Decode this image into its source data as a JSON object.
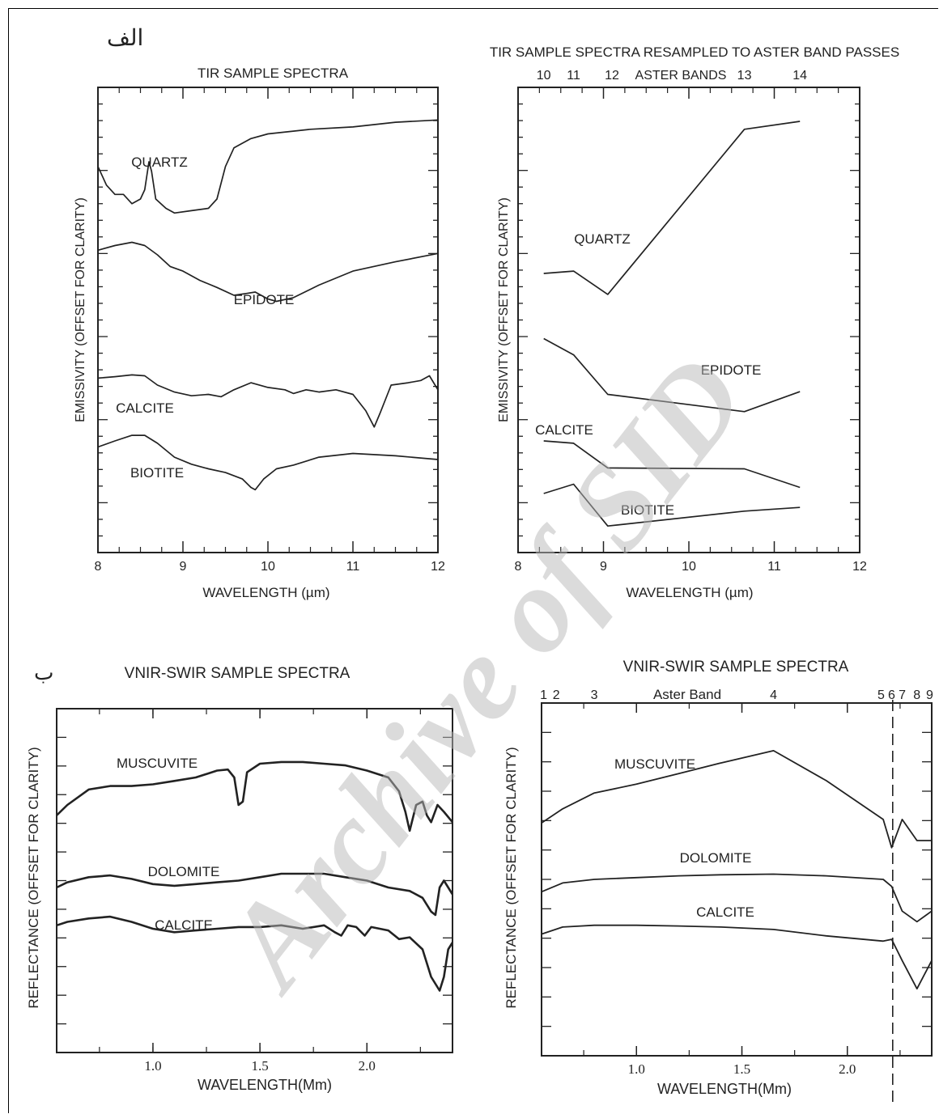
{
  "panel_labels": {
    "a": "الف",
    "b": "ب"
  },
  "watermark": "Archive of SID",
  "chart_data": [
    {
      "type": "line",
      "title": "TIR SAMPLE SPECTRA",
      "xlabel": "WAVELENGTH (µm)",
      "ylabel": "EMISSIVITY (OFFSET FOR CLARITY)",
      "xlim": [
        8,
        12
      ],
      "ylim": [
        0,
        1
      ],
      "x_ticks": [
        "8",
        "9",
        "10",
        "11",
        "12"
      ],
      "grid": false,
      "series": [
        {
          "name": "QUARTZ",
          "points": [
            [
              8.0,
              0.83
            ],
            [
              8.1,
              0.79
            ],
            [
              8.2,
              0.77
            ],
            [
              8.3,
              0.77
            ],
            [
              8.4,
              0.75
            ],
            [
              8.5,
              0.76
            ],
            [
              8.55,
              0.78
            ],
            [
              8.6,
              0.84
            ],
            [
              8.63,
              0.82
            ],
            [
              8.68,
              0.76
            ],
            [
              8.8,
              0.74
            ],
            [
              8.9,
              0.73
            ],
            [
              9.1,
              0.735
            ],
            [
              9.3,
              0.74
            ],
            [
              9.4,
              0.76
            ],
            [
              9.5,
              0.83
            ],
            [
              9.6,
              0.87
            ],
            [
              9.8,
              0.89
            ],
            [
              10.0,
              0.9
            ],
            [
              10.5,
              0.91
            ],
            [
              11.0,
              0.915
            ],
            [
              11.5,
              0.925
            ],
            [
              12.0,
              0.93
            ]
          ]
        },
        {
          "name": "EPIDOTE",
          "points": [
            [
              8.0,
              0.65
            ],
            [
              8.2,
              0.66
            ],
            [
              8.4,
              0.667
            ],
            [
              8.55,
              0.66
            ],
            [
              8.7,
              0.64
            ],
            [
              8.85,
              0.615
            ],
            [
              9.0,
              0.605
            ],
            [
              9.2,
              0.585
            ],
            [
              9.4,
              0.57
            ],
            [
              9.6,
              0.553
            ],
            [
              9.75,
              0.557
            ],
            [
              9.85,
              0.56
            ],
            [
              10.0,
              0.545
            ],
            [
              10.1,
              0.54
            ],
            [
              10.3,
              0.548
            ],
            [
              10.6,
              0.575
            ],
            [
              11.0,
              0.605
            ],
            [
              11.5,
              0.625
            ],
            [
              12.0,
              0.643
            ]
          ]
        },
        {
          "name": "CALCITE",
          "points": [
            [
              8.0,
              0.375
            ],
            [
              8.2,
              0.378
            ],
            [
              8.4,
              0.382
            ],
            [
              8.55,
              0.38
            ],
            [
              8.7,
              0.36
            ],
            [
              8.9,
              0.345
            ],
            [
              9.1,
              0.337
            ],
            [
              9.3,
              0.34
            ],
            [
              9.45,
              0.335
            ],
            [
              9.6,
              0.35
            ],
            [
              9.8,
              0.365
            ],
            [
              10.0,
              0.355
            ],
            [
              10.2,
              0.35
            ],
            [
              10.3,
              0.342
            ],
            [
              10.45,
              0.35
            ],
            [
              10.6,
              0.345
            ],
            [
              10.8,
              0.35
            ],
            [
              11.0,
              0.34
            ],
            [
              11.15,
              0.305
            ],
            [
              11.25,
              0.27
            ],
            [
              11.32,
              0.3
            ],
            [
              11.45,
              0.36
            ],
            [
              11.65,
              0.365
            ],
            [
              11.8,
              0.37
            ],
            [
              11.9,
              0.38
            ],
            [
              12.0,
              0.35
            ]
          ]
        },
        {
          "name": "BIOTITE",
          "points": [
            [
              8.0,
              0.227
            ],
            [
              8.2,
              0.24
            ],
            [
              8.4,
              0.252
            ],
            [
              8.55,
              0.252
            ],
            [
              8.7,
              0.235
            ],
            [
              8.9,
              0.205
            ],
            [
              9.1,
              0.19
            ],
            [
              9.3,
              0.18
            ],
            [
              9.5,
              0.172
            ],
            [
              9.7,
              0.158
            ],
            [
              9.8,
              0.14
            ],
            [
              9.85,
              0.135
            ],
            [
              9.95,
              0.158
            ],
            [
              10.1,
              0.18
            ],
            [
              10.3,
              0.188
            ],
            [
              10.6,
              0.205
            ],
            [
              11.0,
              0.213
            ],
            [
              11.5,
              0.208
            ],
            [
              12.0,
              0.2
            ]
          ]
        }
      ],
      "annotations": [
        "QUARTZ",
        "EPIDOTE",
        "CALCITE",
        "BIOTITE"
      ]
    },
    {
      "type": "line",
      "title": "TIR SAMPLE SPECTRA RESAMPLED TO ASTER BAND PASSES",
      "top_axis_label": "ASTER BANDS",
      "top_axis_ticks": [
        {
          "label": "10",
          "x": 8.3
        },
        {
          "label": "11",
          "x": 8.65
        },
        {
          "label": "12",
          "x": 9.1
        },
        {
          "label": "13",
          "x": 10.65
        },
        {
          "label": "14",
          "x": 11.3
        }
      ],
      "xlabel": "WAVELENGTH (µm)",
      "ylabel": "EMISSIVITY (OFFSET FOR CLARITY)",
      "xlim": [
        8,
        12
      ],
      "ylim": [
        0,
        1
      ],
      "x_ticks": [
        "8",
        "9",
        "10",
        "11",
        "12"
      ],
      "grid": false,
      "series": [
        {
          "name": "QUARTZ",
          "points": [
            [
              8.3,
              0.6
            ],
            [
              8.65,
              0.605
            ],
            [
              9.05,
              0.555
            ],
            [
              10.65,
              0.91
            ],
            [
              11.3,
              0.927
            ]
          ]
        },
        {
          "name": "EPIDOTE",
          "points": [
            [
              8.3,
              0.46
            ],
            [
              8.65,
              0.425
            ],
            [
              9.05,
              0.34
            ],
            [
              10.65,
              0.303
            ],
            [
              11.3,
              0.346
            ]
          ]
        },
        {
          "name": "CALCITE",
          "points": [
            [
              8.3,
              0.24
            ],
            [
              8.65,
              0.235
            ],
            [
              9.05,
              0.182
            ],
            [
              10.65,
              0.18
            ],
            [
              11.3,
              0.14
            ]
          ]
        },
        {
          "name": "BIOTITE",
          "points": [
            [
              8.3,
              0.127
            ],
            [
              8.65,
              0.147
            ],
            [
              9.05,
              0.057
            ],
            [
              10.65,
              0.089
            ],
            [
              11.3,
              0.097
            ]
          ]
        }
      ],
      "annotations": [
        "QUARTZ",
        "EPIDOTE",
        "CALCITE",
        "BIOTITE"
      ]
    },
    {
      "type": "line",
      "title": "VNIR-SWIR SAMPLE SPECTRA",
      "xlabel": "WAVELENGTH(Mm)",
      "ylabel": "REFLECTANCE (OFFSET FOR CLARITY)",
      "xlim": [
        0.55,
        2.4
      ],
      "ylim": [
        0,
        1
      ],
      "x_ticks": [
        "1.0",
        "1.5",
        "2.0"
      ],
      "grid": false,
      "series": [
        {
          "name": "MUSCUVITE",
          "points": [
            [
              0.55,
              0.69
            ],
            [
              0.6,
              0.72
            ],
            [
              0.7,
              0.765
            ],
            [
              0.8,
              0.775
            ],
            [
              0.9,
              0.775
            ],
            [
              1.0,
              0.78
            ],
            [
              1.1,
              0.79
            ],
            [
              1.2,
              0.8
            ],
            [
              1.3,
              0.82
            ],
            [
              1.35,
              0.823
            ],
            [
              1.38,
              0.8
            ],
            [
              1.4,
              0.72
            ],
            [
              1.42,
              0.73
            ],
            [
              1.44,
              0.815
            ],
            [
              1.5,
              0.84
            ],
            [
              1.6,
              0.845
            ],
            [
              1.7,
              0.845
            ],
            [
              1.8,
              0.84
            ],
            [
              1.9,
              0.835
            ],
            [
              2.0,
              0.82
            ],
            [
              2.1,
              0.8
            ],
            [
              2.15,
              0.76
            ],
            [
              2.18,
              0.7
            ],
            [
              2.2,
              0.645
            ],
            [
              2.23,
              0.72
            ],
            [
              2.26,
              0.73
            ],
            [
              2.28,
              0.69
            ],
            [
              2.3,
              0.67
            ],
            [
              2.33,
              0.72
            ],
            [
              2.36,
              0.7
            ],
            [
              2.4,
              0.67
            ]
          ]
        },
        {
          "name": "DOLOMITE",
          "points": [
            [
              0.55,
              0.48
            ],
            [
              0.6,
              0.495
            ],
            [
              0.7,
              0.51
            ],
            [
              0.8,
              0.515
            ],
            [
              0.9,
              0.505
            ],
            [
              1.0,
              0.49
            ],
            [
              1.1,
              0.485
            ],
            [
              1.2,
              0.49
            ],
            [
              1.3,
              0.495
            ],
            [
              1.4,
              0.5
            ],
            [
              1.5,
              0.51
            ],
            [
              1.6,
              0.52
            ],
            [
              1.7,
              0.52
            ],
            [
              1.8,
              0.52
            ],
            [
              1.9,
              0.51
            ],
            [
              2.0,
              0.5
            ],
            [
              2.1,
              0.48
            ],
            [
              2.2,
              0.47
            ],
            [
              2.26,
              0.45
            ],
            [
              2.3,
              0.41
            ],
            [
              2.32,
              0.4
            ],
            [
              2.34,
              0.48
            ],
            [
              2.36,
              0.5
            ],
            [
              2.4,
              0.46
            ]
          ]
        },
        {
          "name": "CALCITE",
          "points": [
            [
              0.55,
              0.37
            ],
            [
              0.6,
              0.38
            ],
            [
              0.7,
              0.39
            ],
            [
              0.8,
              0.395
            ],
            [
              0.9,
              0.38
            ],
            [
              1.0,
              0.36
            ],
            [
              1.1,
              0.35
            ],
            [
              1.2,
              0.355
            ],
            [
              1.3,
              0.36
            ],
            [
              1.4,
              0.365
            ],
            [
              1.5,
              0.365
            ],
            [
              1.6,
              0.37
            ],
            [
              1.7,
              0.36
            ],
            [
              1.8,
              0.37
            ],
            [
              1.85,
              0.35
            ],
            [
              1.88,
              0.34
            ],
            [
              1.91,
              0.37
            ],
            [
              1.95,
              0.365
            ],
            [
              1.99,
              0.34
            ],
            [
              2.02,
              0.365
            ],
            [
              2.1,
              0.355
            ],
            [
              2.15,
              0.33
            ],
            [
              2.2,
              0.335
            ],
            [
              2.26,
              0.3
            ],
            [
              2.3,
              0.22
            ],
            [
              2.34,
              0.18
            ],
            [
              2.36,
              0.22
            ],
            [
              2.38,
              0.3
            ],
            [
              2.4,
              0.32
            ]
          ]
        }
      ],
      "annotations": [
        "MUSCUVITE",
        "DOLOMITE",
        "CALCITE"
      ]
    },
    {
      "type": "line",
      "title": "VNIR-SWIR SAMPLE SPECTRA",
      "top_axis_label": "Aster Band",
      "top_axis_ticks": [
        {
          "label": "1",
          "x": 0.56
        },
        {
          "label": "2",
          "x": 0.62
        },
        {
          "label": "3",
          "x": 0.8
        },
        {
          "label": "4",
          "x": 1.65
        },
        {
          "label": "5",
          "x": 2.16
        },
        {
          "label": "6",
          "x": 2.21
        },
        {
          "label": "7",
          "x": 2.26
        },
        {
          "label": "8",
          "x": 2.33
        },
        {
          "label": "9",
          "x": 2.39
        }
      ],
      "xlabel": "WAVELENGTH(Mm)",
      "ylabel": "REFLECTANCE (OFFSET FOR CLARITY)",
      "xlim": [
        0.55,
        2.4
      ],
      "ylim": [
        0,
        1
      ],
      "x_ticks": [
        "1.0",
        "1.5",
        "2.0"
      ],
      "vertical_line_x": 2.215,
      "grid": false,
      "series": [
        {
          "name": "MUSCUVITE",
          "points": [
            [
              0.55,
              0.66
            ],
            [
              0.65,
              0.7
            ],
            [
              0.8,
              0.745
            ],
            [
              1.0,
              0.77
            ],
            [
              1.2,
              0.8
            ],
            [
              1.4,
              0.83
            ],
            [
              1.65,
              0.865
            ],
            [
              1.9,
              0.78
            ],
            [
              2.17,
              0.67
            ],
            [
              2.21,
              0.59
            ],
            [
              2.26,
              0.67
            ],
            [
              2.33,
              0.61
            ],
            [
              2.4,
              0.61
            ]
          ]
        },
        {
          "name": "DOLOMITE",
          "points": [
            [
              0.55,
              0.465
            ],
            [
              0.65,
              0.49
            ],
            [
              0.8,
              0.5
            ],
            [
              1.0,
              0.505
            ],
            [
              1.2,
              0.51
            ],
            [
              1.4,
              0.513
            ],
            [
              1.65,
              0.515
            ],
            [
              1.9,
              0.51
            ],
            [
              2.17,
              0.5
            ],
            [
              2.21,
              0.48
            ],
            [
              2.26,
              0.41
            ],
            [
              2.33,
              0.38
            ],
            [
              2.4,
              0.41
            ]
          ]
        },
        {
          "name": "CALCITE",
          "points": [
            [
              0.55,
              0.345
            ],
            [
              0.65,
              0.365
            ],
            [
              0.8,
              0.37
            ],
            [
              1.0,
              0.37
            ],
            [
              1.2,
              0.368
            ],
            [
              1.4,
              0.365
            ],
            [
              1.65,
              0.358
            ],
            [
              1.9,
              0.34
            ],
            [
              2.17,
              0.325
            ],
            [
              2.21,
              0.33
            ],
            [
              2.26,
              0.27
            ],
            [
              2.33,
              0.19
            ],
            [
              2.4,
              0.27
            ]
          ]
        }
      ],
      "annotations": [
        "MUSCUVITE",
        "DOLOMITE",
        "CALCITE"
      ]
    }
  ]
}
